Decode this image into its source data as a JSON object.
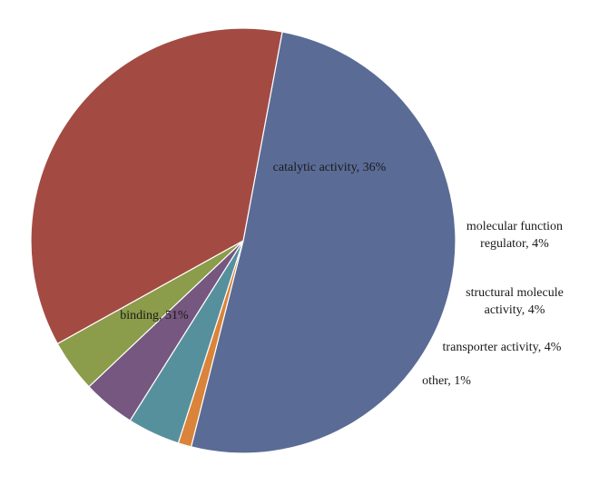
{
  "chart_data": {
    "type": "pie",
    "title": "",
    "slices": [
      {
        "label_lines": [
          "binding, 51%"
        ],
        "value": 51,
        "color": "#5a6b96"
      },
      {
        "label_lines": [
          "catalytic activity, 36%"
        ],
        "value": 36,
        "color": "#a34b43"
      },
      {
        "label_lines": [
          "molecular function",
          "regulator, 4%"
        ],
        "value": 4,
        "color": "#8b9c4a"
      },
      {
        "label_lines": [
          "structural molecule",
          "activity, 4%"
        ],
        "value": 4,
        "color": "#76577f"
      },
      {
        "label_lines": [
          "transporter activity, 4%"
        ],
        "value": 4,
        "color": "#57909d"
      },
      {
        "label_lines": [
          "other, 1%"
        ],
        "value": 1,
        "color": "#d9843a"
      }
    ]
  }
}
